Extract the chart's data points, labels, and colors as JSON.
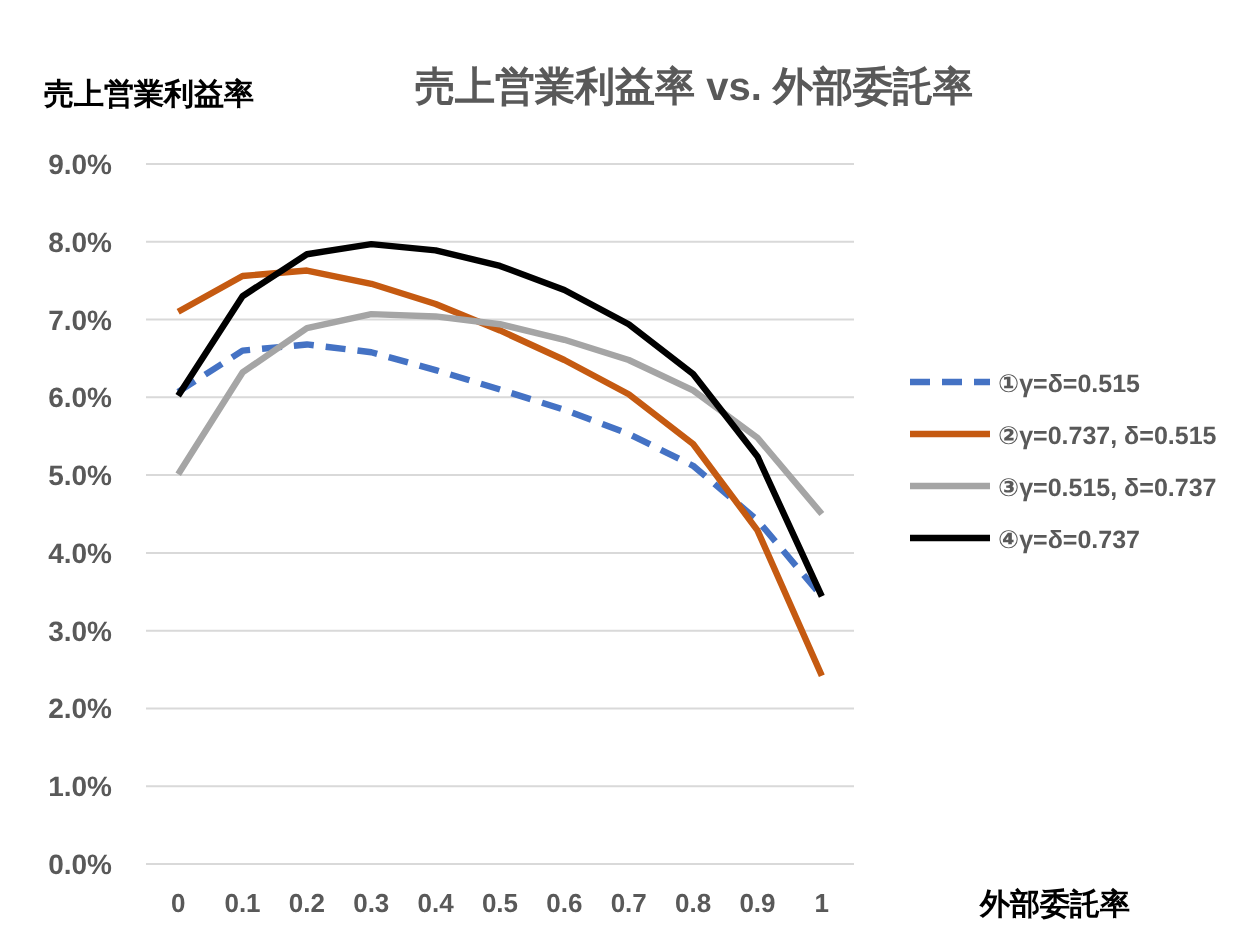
{
  "chart_data": {
    "type": "line",
    "title": "売上営業利益率 vs. 外部委託率",
    "ylabel": "売上営業利益率",
    "xlabel": "外部委託率",
    "categories": [
      "0",
      "0.1",
      "0.2",
      "0.3",
      "0.4",
      "0.5",
      "0.6",
      "0.7",
      "0.8",
      "0.9",
      "1"
    ],
    "series": [
      {
        "name": "①γ=δ=0.515",
        "color": "#4472c4",
        "line_style": "dashed",
        "values": [
          6.07,
          6.6,
          6.68,
          6.58,
          6.35,
          6.1,
          5.84,
          5.53,
          5.12,
          4.42,
          3.44
        ]
      },
      {
        "name": "②γ=0.737, δ=0.515",
        "color": "#c55a11",
        "line_style": "solid",
        "values": [
          7.1,
          7.56,
          7.63,
          7.46,
          7.2,
          6.86,
          6.48,
          6.04,
          5.4,
          4.29,
          2.42
        ]
      },
      {
        "name": "③γ=0.515, δ=0.737",
        "color": "#a5a5a5",
        "line_style": "solid",
        "values": [
          5.01,
          6.32,
          6.89,
          7.07,
          7.04,
          6.94,
          6.74,
          6.48,
          6.09,
          5.48,
          4.5
        ]
      },
      {
        "name": "④γ=δ=0.737",
        "color": "#000000",
        "line_style": "solid",
        "values": [
          6.02,
          7.3,
          7.84,
          7.97,
          7.89,
          7.69,
          7.38,
          6.94,
          6.3,
          5.24,
          3.44
        ]
      }
    ],
    "ylim": [
      0,
      9
    ],
    "yticks": [
      {
        "value": 0,
        "label": "0.0%"
      },
      {
        "value": 1,
        "label": "1.0%"
      },
      {
        "value": 2,
        "label": "2.0%"
      },
      {
        "value": 3,
        "label": "3.0%"
      },
      {
        "value": 4,
        "label": "4.0%"
      },
      {
        "value": 5,
        "label": "5.0%"
      },
      {
        "value": 6,
        "label": "6.0%"
      },
      {
        "value": 7,
        "label": "7.0%"
      },
      {
        "value": 8,
        "label": "8.0%"
      },
      {
        "value": 9,
        "label": "9.0%"
      }
    ],
    "grid": "y",
    "legend": "right",
    "marker": "none"
  }
}
